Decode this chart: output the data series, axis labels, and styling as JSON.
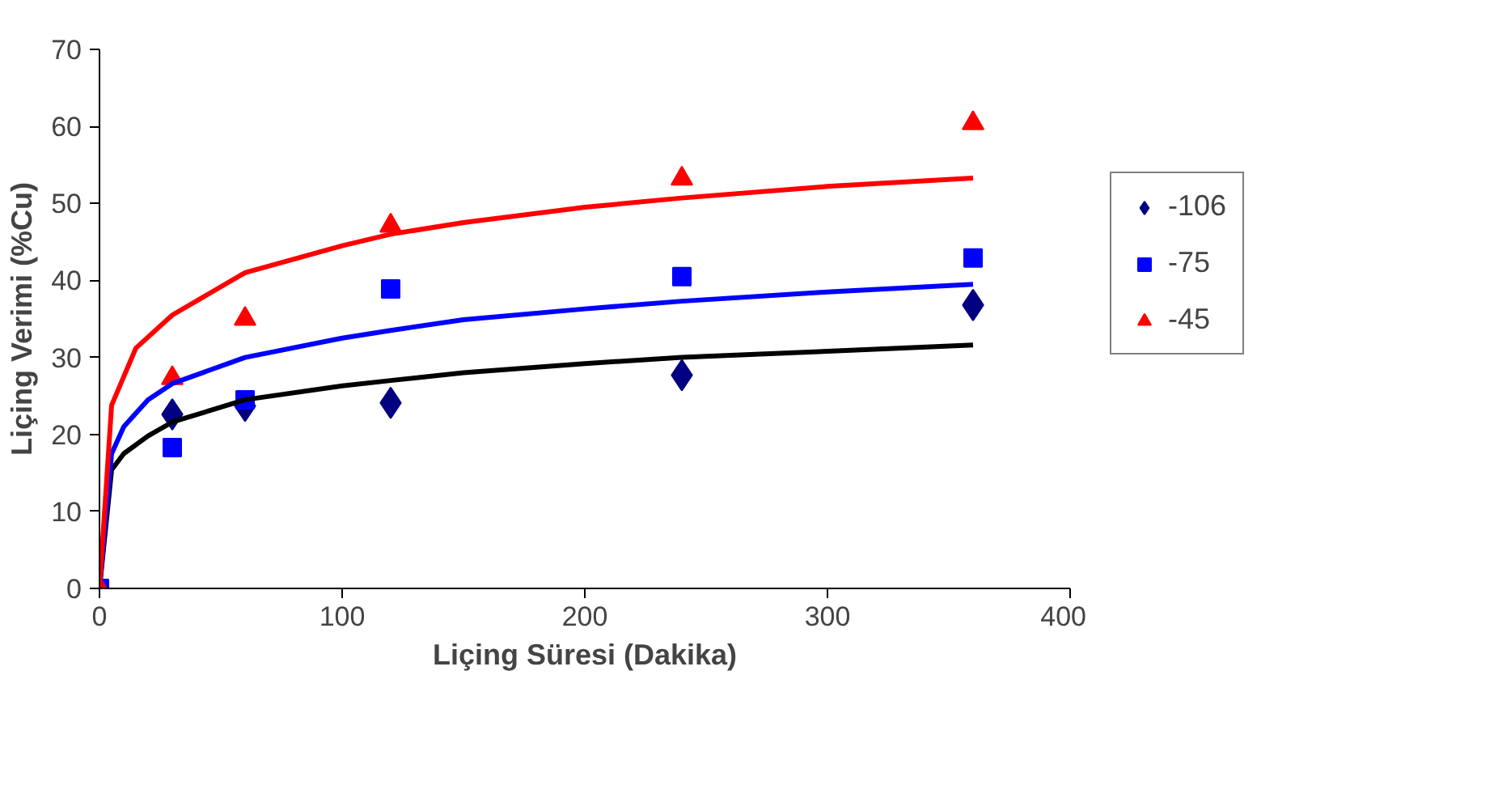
{
  "chart_data": {
    "type": "scatter",
    "xlabel": "Liçing Süresi (Dakika)",
    "ylabel": "Liçing Verimi (%Cu)",
    "x": [
      0,
      30,
      60,
      120,
      240,
      360
    ],
    "series": [
      {
        "name": "-106",
        "color": "#000080",
        "marker": "diamond",
        "values": [
          null,
          22.6,
          23.7,
          24.1,
          27.7,
          36.8
        ]
      },
      {
        "name": "-75",
        "color": "#0000ff",
        "marker": "square",
        "values": [
          0,
          18.3,
          24.5,
          38.9,
          40.5,
          42.9
        ]
      },
      {
        "name": "-45",
        "color": "#ff0000",
        "marker": "triangle",
        "values": [
          0,
          27.3,
          35.0,
          47.1,
          53.2,
          60.4
        ]
      },
      {
        "type": "line",
        "color": "#000000",
        "x": [
          0,
          5,
          10,
          20,
          30,
          60,
          100,
          120,
          150,
          200,
          240,
          300,
          360
        ],
        "values": [
          0,
          15.4,
          17.5,
          19.8,
          21.6,
          24.5,
          26.3,
          27,
          28,
          29.2,
          30,
          30.8,
          31.6
        ]
      },
      {
        "type": "line",
        "color": "#0000ff",
        "x": [
          0,
          5,
          10,
          20,
          30,
          60,
          100,
          120,
          150,
          200,
          240,
          300,
          360
        ],
        "values": [
          0,
          17.5,
          21,
          24.5,
          26.6,
          30,
          32.5,
          33.5,
          34.9,
          36.3,
          37.3,
          38.5,
          39.5
        ]
      },
      {
        "type": "line",
        "color": "#ff0000",
        "x": [
          0,
          5,
          10,
          15,
          30,
          60,
          100,
          120,
          150,
          200,
          240,
          300,
          360
        ],
        "values": [
          0,
          23.8,
          27.5,
          31.2,
          35.5,
          41,
          44.5,
          46,
          47.5,
          49.5,
          50.7,
          52.2,
          53.3
        ]
      }
    ],
    "xlim": [
      0,
      400
    ],
    "xticks": [
      0,
      100,
      200,
      300,
      400
    ],
    "ylim": [
      0,
      70
    ],
    "yticks": [
      0,
      10,
      20,
      30,
      40,
      50,
      60,
      70
    ],
    "grid": false,
    "legend": "right"
  }
}
